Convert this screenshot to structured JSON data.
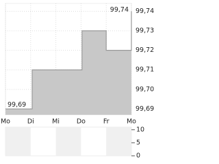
{
  "chart_data": [
    {
      "type": "step-area",
      "x": [
        0,
        1.06,
        3.04,
        4.0,
        5.0
      ],
      "values": [
        99.69,
        99.71,
        99.73,
        99.72,
        99.74
      ],
      "color": "#c8c8c8",
      "line_color": "#9a9a9a",
      "xlim": [
        0,
        5
      ],
      "xticks": [
        {
          "value": 0,
          "label": "Mo"
        },
        {
          "value": 1,
          "label": "Di"
        },
        {
          "value": 2,
          "label": "Mi"
        },
        {
          "value": 3,
          "label": "Do"
        },
        {
          "value": 4,
          "label": "Fr"
        },
        {
          "value": 5,
          "label": "Mo"
        }
      ],
      "ylim": [
        99.687,
        99.744
      ],
      "yticks": [
        {
          "value": 99.69,
          "label": "99,69"
        },
        {
          "value": 99.7,
          "label": "99,70"
        },
        {
          "value": 99.71,
          "label": "99,71"
        },
        {
          "value": 99.72,
          "label": "99,72"
        },
        {
          "value": 99.73,
          "label": "99,73"
        },
        {
          "value": 99.74,
          "label": "99,74"
        }
      ],
      "annotations": [
        {
          "label": "99,74",
          "value": 99.74
        },
        {
          "label": "99,69",
          "value": 99.69
        }
      ],
      "grid": true
    },
    {
      "type": "bar",
      "ylim": [
        0,
        11
      ],
      "yticks": [
        0,
        5,
        10
      ]
    }
  ]
}
